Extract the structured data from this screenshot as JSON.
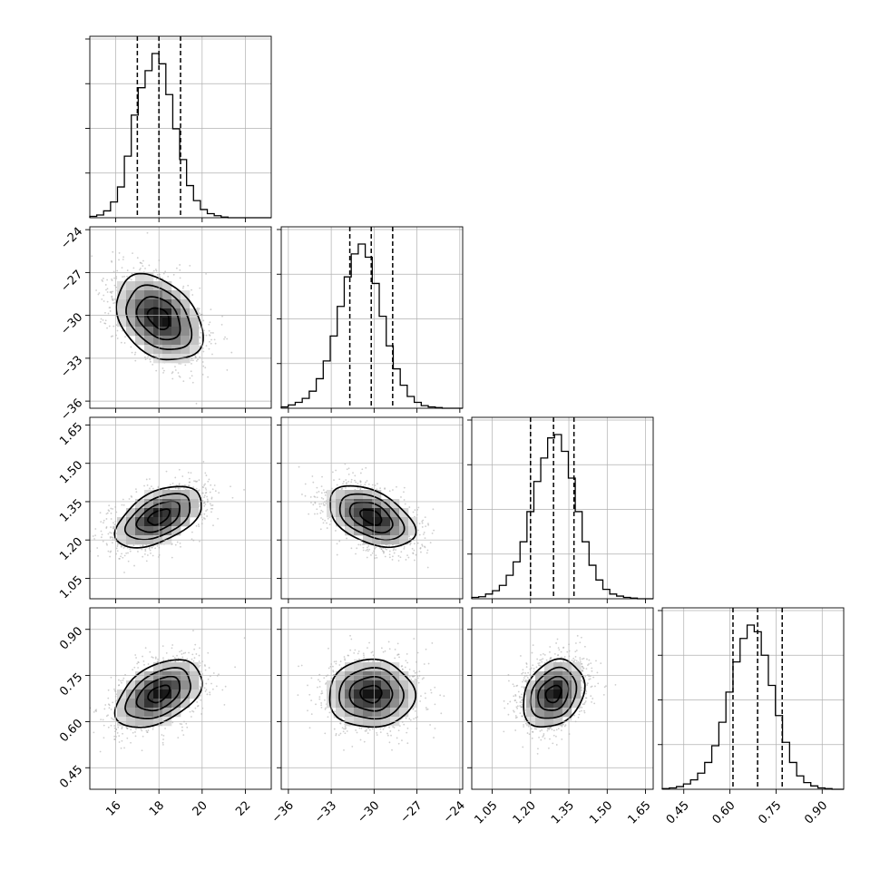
{
  "chart_data": {
    "type": "corner",
    "description": "Corner plot of posterior samples for four parameters: 1D marginal histograms on the diagonal with dashed quantile lines, 2D density panels (scatter, shaded histogram, contours) below the diagonal.",
    "grid": true,
    "parameters": [
      {
        "index": 0,
        "range": [
          14.8,
          23.2
        ],
        "ticks": [
          16,
          18,
          20,
          22
        ],
        "tick_labels": [
          "16",
          "18",
          "20",
          "22"
        ],
        "mean": 18.0,
        "std": 1.0,
        "quantiles": [
          17.0,
          18.0,
          19.0
        ],
        "histogram": {
          "bin_edges": [
            14.8,
            15.12,
            15.44,
            15.76,
            16.08,
            16.4,
            16.72,
            17.04,
            17.36,
            17.68,
            18.0,
            18.32,
            18.64,
            18.96,
            19.28,
            19.6,
            19.92,
            20.24,
            20.56,
            20.88,
            21.2,
            21.52,
            21.84,
            22.16,
            22.48,
            22.8,
            23.2
          ],
          "counts": [
            2,
            4,
            10,
            23,
            45,
            90,
            150,
            190,
            215,
            240,
            225,
            180,
            130,
            85,
            47,
            25,
            12,
            6,
            3,
            1,
            0,
            0,
            0,
            0,
            0,
            0
          ]
        }
      },
      {
        "index": 1,
        "range": [
          -36.5,
          -23.8
        ],
        "ticks": [
          -36,
          -33,
          -30,
          -27,
          -24
        ],
        "tick_labels": [
          "−36",
          "−33",
          "−30",
          "−27",
          "−24"
        ],
        "mean": -30.2,
        "std": 1.5,
        "quantiles": [
          -31.7,
          -30.2,
          -28.7
        ],
        "histogram": {
          "bin_edges": [
            -36.5,
            -36.01,
            -35.52,
            -35.03,
            -34.54,
            -34.05,
            -33.56,
            -33.07,
            -32.58,
            -32.09,
            -31.6,
            -31.11,
            -30.62,
            -30.13,
            -29.64,
            -29.15,
            -28.66,
            -28.17,
            -27.68,
            -27.19,
            -26.7,
            -26.21,
            -25.72,
            -25.23,
            -24.74,
            -24.25,
            -23.8
          ],
          "counts": [
            2,
            5,
            9,
            15,
            26,
            45,
            72,
            110,
            155,
            200,
            235,
            250,
            230,
            190,
            140,
            95,
            60,
            35,
            18,
            9,
            4,
            2,
            1,
            0,
            0,
            0
          ]
        }
      },
      {
        "index": 2,
        "range": [
          0.97,
          1.68
        ],
        "ticks": [
          1.05,
          1.2,
          1.35,
          1.5,
          1.65
        ],
        "tick_labels": [
          "1.05",
          "1.20",
          "1.35",
          "1.50",
          "1.65"
        ],
        "mean": 1.29,
        "std": 0.06,
        "quantiles": [
          1.2,
          1.29,
          1.37
        ],
        "histogram": {
          "bin_edges": [
            0.97,
            0.997,
            1.024,
            1.051,
            1.078,
            1.105,
            1.132,
            1.159,
            1.186,
            1.213,
            1.24,
            1.267,
            1.294,
            1.321,
            1.348,
            1.375,
            1.402,
            1.429,
            1.456,
            1.483,
            1.51,
            1.537,
            1.564,
            1.591,
            1.618,
            1.645,
            1.68
          ],
          "counts": [
            2,
            3,
            7,
            12,
            20,
            35,
            55,
            85,
            130,
            175,
            210,
            240,
            245,
            220,
            180,
            130,
            85,
            50,
            28,
            14,
            7,
            4,
            2,
            1,
            0,
            0
          ]
        }
      },
      {
        "index": 3,
        "range": [
          0.38,
          0.97
        ],
        "ticks": [
          0.45,
          0.6,
          0.75,
          0.9
        ],
        "tick_labels": [
          "0.45",
          "0.60",
          "0.75",
          "0.90"
        ],
        "mean": 0.69,
        "std": 0.055,
        "quantiles": [
          0.61,
          0.69,
          0.77
        ],
        "histogram": {
          "bin_edges": [
            0.38,
            0.403,
            0.426,
            0.449,
            0.472,
            0.495,
            0.518,
            0.541,
            0.564,
            0.587,
            0.61,
            0.633,
            0.656,
            0.679,
            0.702,
            0.725,
            0.748,
            0.771,
            0.794,
            0.817,
            0.84,
            0.863,
            0.886,
            0.909,
            0.932,
            0.955,
            0.97
          ],
          "counts": [
            1,
            2,
            4,
            8,
            14,
            24,
            40,
            65,
            100,
            145,
            190,
            225,
            245,
            235,
            200,
            155,
            110,
            70,
            40,
            20,
            10,
            5,
            2,
            1,
            0,
            0
          ]
        }
      }
    ],
    "correlations": {
      "1_0": -0.35,
      "2_0": 0.5,
      "2_1": -0.45,
      "3_0": 0.45,
      "3_1": 0.0,
      "3_2": 0.25
    },
    "contour_levels_sigma": [
      0.5,
      1.0,
      1.5,
      2.0
    ],
    "colors": {
      "line": "#000000",
      "grid": "#b0b0b0",
      "scatter": "#a6a6a6",
      "density_dark": "#000000",
      "background": "#ffffff"
    }
  }
}
